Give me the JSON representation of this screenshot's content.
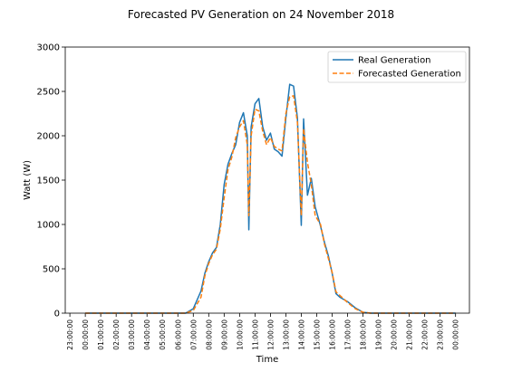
{
  "chart_data": {
    "type": "line",
    "title": "Forecasted PV Generation on 24 November 2018",
    "xlabel": "Time",
    "ylabel": "Watt (W)",
    "ylim": [
      0,
      3000
    ],
    "xlim": [
      -1.3,
      24.9
    ],
    "yticks": [
      0,
      500,
      1000,
      1500,
      2000,
      2500,
      3000
    ],
    "xticks": [
      {
        "v": -1,
        "label": "23:00:00"
      },
      {
        "v": 0,
        "label": "00:00:00"
      },
      {
        "v": 1,
        "label": "01:00:00"
      },
      {
        "v": 2,
        "label": "02:00:00"
      },
      {
        "v": 3,
        "label": "03:00:00"
      },
      {
        "v": 4,
        "label": "04:00:00"
      },
      {
        "v": 5,
        "label": "05:00:00"
      },
      {
        "v": 6,
        "label": "06:00:00"
      },
      {
        "v": 7,
        "label": "07:00:00"
      },
      {
        "v": 8,
        "label": "08:00:00"
      },
      {
        "v": 9,
        "label": "09:00:00"
      },
      {
        "v": 10,
        "label": "10:00:00"
      },
      {
        "v": 11,
        "label": "11:00:00"
      },
      {
        "v": 12,
        "label": "12:00:00"
      },
      {
        "v": 13,
        "label": "13:00:00"
      },
      {
        "v": 14,
        "label": "14:00:00"
      },
      {
        "v": 15,
        "label": "15:00:00"
      },
      {
        "v": 16,
        "label": "16:00:00"
      },
      {
        "v": 17,
        "label": "17:00:00"
      },
      {
        "v": 18,
        "label": "18:00:00"
      },
      {
        "v": 19,
        "label": "19:00:00"
      },
      {
        "v": 20,
        "label": "20:00:00"
      },
      {
        "v": 21,
        "label": "21:00:00"
      },
      {
        "v": 22,
        "label": "22:00:00"
      },
      {
        "v": 23,
        "label": "23:00:00"
      },
      {
        "v": 24,
        "label": "00:00:00"
      }
    ],
    "legend_position": "top-right",
    "series": [
      {
        "name": "Real Generation",
        "color": "#1f77b4",
        "style": "solid",
        "points": [
          [
            0,
            0
          ],
          [
            6.5,
            0
          ],
          [
            7,
            50
          ],
          [
            7.5,
            250
          ],
          [
            7.75,
            450
          ],
          [
            8,
            580
          ],
          [
            8.25,
            680
          ],
          [
            8.5,
            740
          ],
          [
            8.75,
            1000
          ],
          [
            9,
            1450
          ],
          [
            9.25,
            1680
          ],
          [
            9.5,
            1800
          ],
          [
            9.75,
            1900
          ],
          [
            10,
            2150
          ],
          [
            10.25,
            2260
          ],
          [
            10.5,
            2000
          ],
          [
            10.6,
            940
          ],
          [
            10.75,
            2100
          ],
          [
            11,
            2360
          ],
          [
            11.25,
            2420
          ],
          [
            11.5,
            2100
          ],
          [
            11.75,
            1950
          ],
          [
            12,
            2030
          ],
          [
            12.25,
            1850
          ],
          [
            12.5,
            1820
          ],
          [
            12.75,
            1770
          ],
          [
            13,
            2200
          ],
          [
            13.25,
            2580
          ],
          [
            13.5,
            2560
          ],
          [
            13.75,
            2200
          ],
          [
            14,
            990
          ],
          [
            14.15,
            2190
          ],
          [
            14.4,
            1330
          ],
          [
            14.65,
            1520
          ],
          [
            14.9,
            1200
          ],
          [
            15.25,
            980
          ],
          [
            15.5,
            800
          ],
          [
            15.75,
            650
          ],
          [
            16,
            450
          ],
          [
            16.25,
            220
          ],
          [
            16.5,
            180
          ],
          [
            17,
            130
          ],
          [
            17.5,
            60
          ],
          [
            18,
            10
          ],
          [
            18.5,
            0
          ],
          [
            24,
            0
          ]
        ]
      },
      {
        "name": "Forecasted Generation",
        "color": "#ff7f0e",
        "style": "dashed",
        "points": [
          [
            0,
            0
          ],
          [
            6.5,
            0
          ],
          [
            7,
            30
          ],
          [
            7.5,
            180
          ],
          [
            7.75,
            420
          ],
          [
            8,
            560
          ],
          [
            8.25,
            660
          ],
          [
            8.5,
            720
          ],
          [
            8.75,
            950
          ],
          [
            9,
            1300
          ],
          [
            9.25,
            1620
          ],
          [
            9.5,
            1760
          ],
          [
            9.75,
            1980
          ],
          [
            10,
            2100
          ],
          [
            10.25,
            2170
          ],
          [
            10.5,
            1900
          ],
          [
            10.6,
            1100
          ],
          [
            10.75,
            2000
          ],
          [
            11,
            2300
          ],
          [
            11.25,
            2280
          ],
          [
            11.5,
            2050
          ],
          [
            11.75,
            1900
          ],
          [
            12,
            1980
          ],
          [
            12.25,
            1880
          ],
          [
            12.5,
            1850
          ],
          [
            12.75,
            1830
          ],
          [
            13,
            2250
          ],
          [
            13.25,
            2440
          ],
          [
            13.5,
            2450
          ],
          [
            13.75,
            2150
          ],
          [
            14,
            1100
          ],
          [
            14.15,
            2080
          ],
          [
            14.4,
            1700
          ],
          [
            14.65,
            1450
          ],
          [
            14.9,
            1100
          ],
          [
            15.25,
            1000
          ],
          [
            15.5,
            780
          ],
          [
            15.75,
            620
          ],
          [
            16,
            460
          ],
          [
            16.25,
            240
          ],
          [
            16.5,
            200
          ],
          [
            17,
            120
          ],
          [
            17.5,
            50
          ],
          [
            18,
            10
          ],
          [
            18.5,
            0
          ],
          [
            24,
            0
          ]
        ]
      }
    ]
  }
}
